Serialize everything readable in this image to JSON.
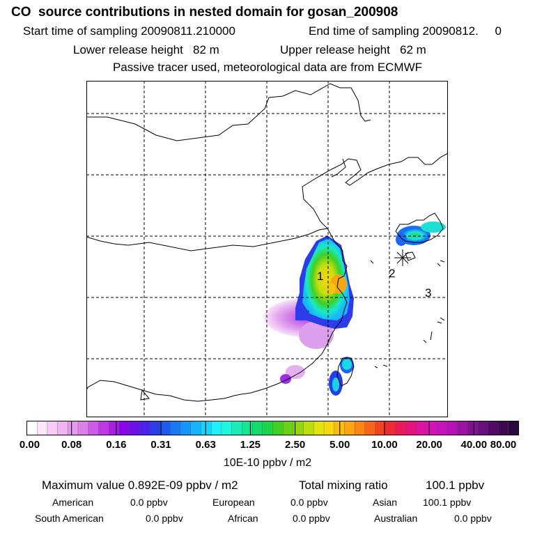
{
  "header": {
    "title": "CO  source contributions in nested domain for gosan_200908",
    "start_label": "Start time of sampling 20090811.210000",
    "end_label": "End time of sampling 20090812.     0",
    "lower_label": "Lower release height   82 m",
    "upper_label": "Upper release height   62 m",
    "note": "Passive tracer used, meteorological data are from ECMWF"
  },
  "map": {
    "site_labels": [
      "1",
      "2",
      "3"
    ],
    "receptor_marker": "asterisk"
  },
  "colorbar": {
    "ticks": [
      "0.00",
      "0.08",
      "0.16",
      "0.31",
      "0.63",
      "1.25",
      "2.50",
      "5.00",
      "10.00",
      "20.00",
      "40.00",
      "80.00"
    ],
    "colors": [
      "#ffffff",
      "#fbe6fb",
      "#f6ccf6",
      "#efb3f0",
      "#e699ec",
      "#dd7fe8",
      "#cf5ce6",
      "#bf3ae4",
      "#a81fe6",
      "#8a08e8",
      "#6b10e8",
      "#4b20ea",
      "#2b3ce8",
      "#1f5af0",
      "#1a78f6",
      "#1596fa",
      "#16b4fb",
      "#19d2fb",
      "#1ef0f8",
      "#1ff6e0",
      "#18eeb8",
      "#12e692",
      "#12dd6c",
      "#1dd54a",
      "#3fd023",
      "#6ad013",
      "#94d60f",
      "#bedd0d",
      "#e2e40e",
      "#f6d80f",
      "#fbbe10",
      "#fca412",
      "#fb8614",
      "#f86418",
      "#f4421e",
      "#ee2a36",
      "#ea1a5a",
      "#e6127e",
      "#e012a0",
      "#d812b6",
      "#c812bc",
      "#b412b4",
      "#9c12a4",
      "#821092",
      "#680e7e",
      "#520a68",
      "#3e0852",
      "#2c063e"
    ],
    "unit": "10E-10 ppbv / m2"
  },
  "stats": {
    "max_label": "Maximum value  0.892E-09 ppbv / m2",
    "total_label": "Total mixing ratio",
    "total_value": "100.1 ppbv"
  },
  "regions": [
    {
      "name": "American",
      "value": "0.0 ppbv"
    },
    {
      "name": "European",
      "value": "0.0 ppbv"
    },
    {
      "name": "Asian",
      "value": "100.1 ppbv"
    },
    {
      "name": "South American",
      "value": "0.0 ppbv"
    },
    {
      "name": "African",
      "value": "0.0 ppbv"
    },
    {
      "name": "Australian",
      "value": "0.0 ppbv"
    }
  ]
}
